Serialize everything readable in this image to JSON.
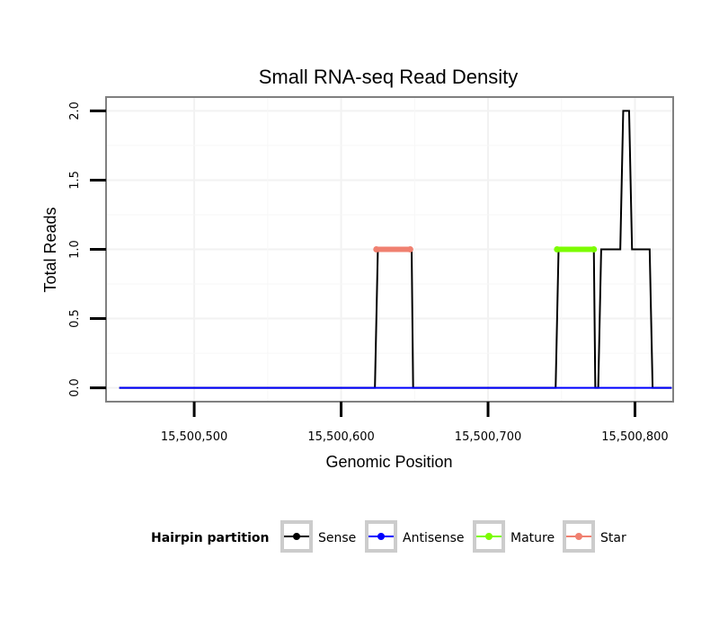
{
  "chart_data": {
    "type": "line",
    "title": "Small RNA-seq Read Density",
    "xlabel": "Genomic Position",
    "ylabel": "Total Reads",
    "xlim": [
      15500440,
      15500826
    ],
    "ylim": [
      -0.1,
      2.1
    ],
    "x_ticks": [
      15500500,
      15500600,
      15500700,
      15500800
    ],
    "x_tick_labels": [
      "15,500,500",
      "15,500,600",
      "15,500,700",
      "15,500,800"
    ],
    "y_ticks": [
      0,
      0.5,
      1,
      1.5,
      2
    ],
    "y_tick_labels": [
      "0.0",
      "0.5",
      "1.0",
      "1.5",
      "2.0"
    ],
    "grid": true,
    "series": [
      {
        "name": "Sense",
        "color": "#000000",
        "x": [
          15500449,
          15500623,
          15500625,
          15500648,
          15500649,
          15500746,
          15500748,
          15500772,
          15500773,
          15500775,
          15500777,
          15500790,
          15500792,
          15500796,
          15500798,
          15500810,
          15500812,
          15500825
        ],
        "y": [
          0,
          0,
          1,
          1,
          0,
          0,
          1,
          1,
          0,
          0,
          1,
          1,
          2,
          2,
          1,
          1,
          0,
          0
        ]
      },
      {
        "name": "Antisense",
        "color": "#0000ff",
        "x": [
          15500449,
          15500825
        ],
        "y": [
          0,
          0
        ]
      },
      {
        "name": "Mature",
        "color": "#7cfc00",
        "x": [
          15500747,
          15500772
        ],
        "y": [
          1,
          1
        ]
      },
      {
        "name": "Star",
        "color": "#f08070",
        "x": [
          15500624,
          15500647
        ],
        "y": [
          1,
          1
        ]
      }
    ],
    "legend": {
      "title": "Hairpin partition",
      "position": "bottom",
      "entries": [
        "Sense",
        "Antisense",
        "Mature",
        "Star"
      ]
    }
  }
}
